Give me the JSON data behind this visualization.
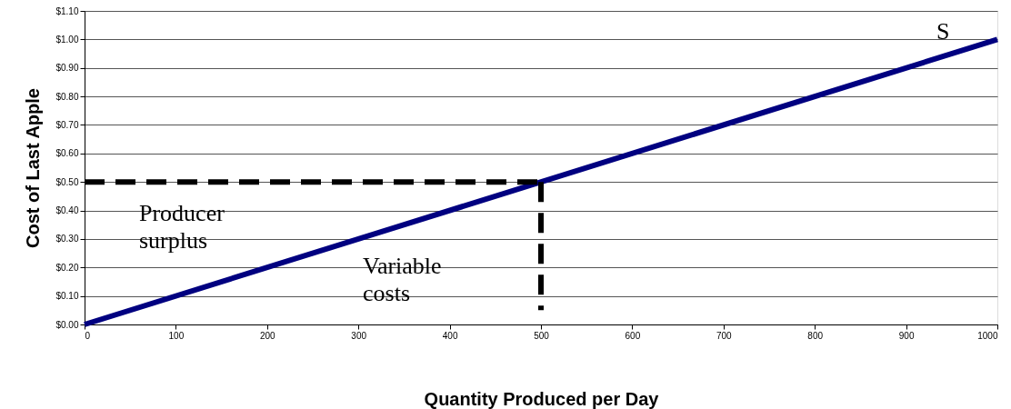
{
  "chart_data": {
    "type": "line",
    "xlabel": "Quantity Produced per Day",
    "ylabel": "Cost of Last Apple",
    "series": [
      {
        "color": "#000080",
        "x": [
          0,
          1000
        ],
        "values": [
          0.0,
          1.0
        ],
        "line_style": "solid"
      },
      {
        "color": "#000000",
        "x": [
          0,
          500
        ],
        "values": [
          0.5,
          0.5
        ],
        "line_style": "dashed"
      },
      {
        "color": "#000000",
        "x": [
          500,
          500
        ],
        "values": [
          0.5,
          0.05
        ],
        "line_style": "dashed"
      }
    ],
    "xlim": [
      0,
      1000
    ],
    "xticks": [
      0,
      100,
      200,
      300,
      400,
      500,
      600,
      700,
      800,
      900,
      1000
    ],
    "ylim": [
      0,
      1.1
    ],
    "yticks": [
      {
        "value": 0,
        "label": "$0.00"
      },
      {
        "value": 0.1,
        "label": "$0.10"
      },
      {
        "value": 0.2,
        "label": "$0.20"
      },
      {
        "value": 0.3,
        "label": "$0.30"
      },
      {
        "value": 0.4,
        "label": "$0.40"
      },
      {
        "value": 0.5,
        "label": "$0.50"
      },
      {
        "value": 0.6,
        "label": "$0.60"
      },
      {
        "value": 0.7,
        "label": "$0.70"
      },
      {
        "value": 0.8,
        "label": "$0.80"
      },
      {
        "value": 0.9,
        "label": "$0.90"
      },
      {
        "value": 1.0,
        "label": "$1.00"
      },
      {
        "value": 1.1,
        "label": "$1.10"
      }
    ],
    "grid": "y",
    "marker": "none",
    "annotations": [
      "S",
      "Producer\nsurplus",
      "Variable\ncosts"
    ]
  }
}
